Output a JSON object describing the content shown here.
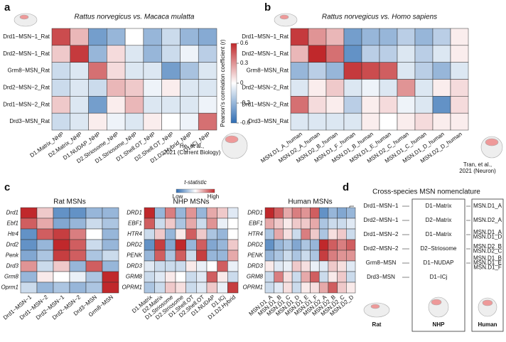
{
  "chart_data": [
    {
      "type": "heatmap",
      "title": "Rattus norvegicus vs. Macaca mulatta",
      "rows": [
        "Drd1−MSN−1_Rat",
        "Drd2−MSN−1_Rat",
        "Grm8−MSN_Rat",
        "Drd2−MSN−2_Rat",
        "Drd1−MSN−2_Rat",
        "Drd3−MSN_Rat"
      ],
      "categories": [
        "D1.Matrix_NHP",
        "D2.Matrix_NHP",
        "D1.NUDAP_NHP",
        "D2.Striosome_NHP",
        "D1.Striosome_NHP",
        "D1.Shell.OT_NHP",
        "D2.Shell.OT_NHP",
        "D1.D2.Hybrid_NHP",
        "D1.ICj_NHP"
      ],
      "values": [
        [
          0.5,
          0.2,
          -0.4,
          -0.3,
          0,
          -0.3,
          -0.15,
          -0.3,
          -0.35
        ],
        [
          0.15,
          0.55,
          -0.3,
          0.1,
          -0.1,
          -0.3,
          -0.15,
          -0.05,
          -0.2
        ],
        [
          -0.15,
          -0.1,
          0.4,
          0.1,
          -0.1,
          -0.1,
          -0.4,
          -0.25,
          -0.1
        ],
        [
          -0.15,
          -0.1,
          -0.15,
          0.2,
          0.15,
          -0.05,
          0.05,
          -0.1,
          -0.1
        ],
        [
          0.15,
          -0.1,
          -0.4,
          0.05,
          0.2,
          -0.1,
          -0.1,
          -0.1,
          -0.05
        ],
        [
          -0.15,
          -0.1,
          0.05,
          -0.05,
          -0.1,
          0.05,
          0,
          -0.05,
          0.4
        ]
      ],
      "colors": [
        "#2f6db3",
        "#ffffff",
        "#c0282b"
      ],
      "colorbar": {
        "label": "Pearson's correlation coefficient (r)",
        "lim": [
          -0.6,
          0.6
        ],
        "ticks": [
          0.6,
          0.3,
          0,
          -0.3,
          -0.6
        ]
      },
      "citation": [
        "He, et al.,",
        "2021 (Current Biology)"
      ]
    },
    {
      "type": "heatmap",
      "title": "Rattus norvegicus vs. Homo sapiens",
      "rows": [
        "Drd1−MSN−1_Rat",
        "Drd2−MSN−1_Rat",
        "Grm8−MSN_Rat",
        "Drd2−MSN−2_Rat",
        "Drd1−MSN−2_Rat",
        "Drd3−MSN_Rat"
      ],
      "categories": [
        "MSN.D1_A_human",
        "MSN.D2_A_human",
        "MSN.D2_B_human",
        "MSN.D1_F_human",
        "MSN.D1_B_human",
        "MSN.D1_E_human",
        "MSN.D2_C_human",
        "MSN.D1_C_human",
        "MSN.D1_D_human",
        "MSN.D2_D_human"
      ],
      "values": [
        [
          0.55,
          0.3,
          0.2,
          -0.4,
          -0.3,
          -0.3,
          -0.2,
          -0.3,
          -0.2,
          0.05
        ],
        [
          0.2,
          0.6,
          0.4,
          -0.45,
          -0.2,
          -0.2,
          -0.1,
          -0.2,
          -0.1,
          0.05
        ],
        [
          -0.3,
          -0.2,
          -0.3,
          0.55,
          0.5,
          0.45,
          -0.1,
          -0.2,
          -0.3,
          -0.1
        ],
        [
          -0.1,
          0.05,
          0.15,
          -0.1,
          -0.05,
          -0.1,
          0.3,
          -0.1,
          0.05,
          0.1
        ],
        [
          0.4,
          0.1,
          0.05,
          -0.2,
          0.05,
          0.1,
          -0.05,
          -0.1,
          -0.45,
          0.1
        ],
        [
          -0.1,
          -0.1,
          -0.1,
          -0.1,
          0.05,
          0,
          0.05,
          0.1,
          0.05,
          0.05
        ]
      ],
      "colors": [
        "#2f6db3",
        "#ffffff",
        "#c0282b"
      ],
      "colorbar": {
        "lim": [
          -0.6,
          0.6
        ]
      },
      "citation": [
        "Tran, et al.,",
        "2021 (Neuron)"
      ]
    },
    {
      "type": "heatmap",
      "title": "Rat MSNs",
      "rows": [
        "Drd1",
        "Ebf1",
        "Htr4",
        "Drd2",
        "Penk",
        "Drd3",
        "Grm8",
        "Oprm1"
      ],
      "categories": [
        "Drd1−MSN−1",
        "Drd1−MSN−2",
        "Drd2−MSN−1",
        "Drd2−MSN−2",
        "Drd3−MSN",
        "Grm8−MSN"
      ],
      "values": [
        [
          2,
          0.5,
          -1.5,
          -1.5,
          -1,
          -1
        ],
        [
          1.5,
          0.8,
          -1.2,
          -1,
          -0.5,
          -0.8
        ],
        [
          -1.5,
          1.5,
          1.8,
          1.2,
          0,
          -1
        ],
        [
          -1.5,
          -1,
          2,
          1.5,
          -0.5,
          -1
        ],
        [
          -1.2,
          -0.8,
          1.8,
          1.5,
          -0.8,
          -0.5
        ],
        [
          1,
          -0.5,
          0.5,
          -1,
          1.5,
          -1
        ],
        [
          -1,
          0.2,
          0,
          -0.2,
          -0.8,
          2
        ],
        [
          -0.5,
          -1,
          -0.8,
          -1,
          -0.8,
          2
        ]
      ],
      "colors": [
        "#2f6db3",
        "#ffffff",
        "#c0282b"
      ],
      "colorbar": {
        "title": "t-statistic",
        "low_label": "Low",
        "high_label": "High"
      }
    },
    {
      "type": "heatmap",
      "title": "NHP MSNs",
      "rows": [
        "DRD1",
        "EBF1",
        "HTR4",
        "DRD2",
        "PENK",
        "DRD3",
        "GRM8",
        "OPRM1"
      ],
      "categories": [
        "D1.Matrix",
        "D2.Matrix",
        "D1.Striosome",
        "D2.Striosome",
        "D1.Shell.OT",
        "D2.Shell.OT",
        "D1.NUDAP",
        "D1.ICj",
        "D1.D2.Hybrid"
      ],
      "values": [
        [
          2,
          -1,
          1.2,
          -1,
          1,
          -1,
          0.8,
          0.5,
          -0.3
        ],
        [
          1.5,
          -0.5,
          0.5,
          -0.8,
          0.8,
          -0.5,
          1,
          -0.2,
          0
        ],
        [
          -0.5,
          0.5,
          -1,
          0.2,
          1.5,
          0.5,
          -0.8,
          -1,
          0
        ],
        [
          -1.5,
          1.8,
          -1.2,
          2,
          -1,
          1.5,
          -1.2,
          -1,
          0.5
        ],
        [
          -1,
          1.5,
          -0.8,
          1.5,
          -0.5,
          1.8,
          -1,
          -1,
          0.8
        ],
        [
          -0.3,
          -0.5,
          -0.5,
          -0.5,
          0.2,
          -0.2,
          0,
          1.5,
          -0.2
        ],
        [
          -0.5,
          -0.3,
          0.2,
          0,
          -0.5,
          -0.3,
          1.5,
          0.2,
          -0.5
        ],
        [
          -0.8,
          -0.5,
          0.5,
          0.3,
          -0.5,
          -0.3,
          0.5,
          -0.2,
          1.8
        ]
      ],
      "colors": [
        "#2f6db3",
        "#ffffff",
        "#c0282b"
      ]
    },
    {
      "type": "heatmap",
      "title": "Human MSNs",
      "rows": [
        "DRD1",
        "EBF1",
        "HTR4",
        "DRD2",
        "PENK",
        "DRD3",
        "GRM8",
        "OPRM1"
      ],
      "categories": [
        "MSN.D1_A",
        "MSN.D1_B",
        "MSN.D1_C",
        "MSN.D1_D",
        "MSN.D1_E",
        "MSN.D1_F",
        "MSN.D2_A",
        "MSN.D2_B",
        "MSN.D2_C",
        "MSN.D2_D"
      ],
      "values": [
        [
          2,
          1.5,
          0.8,
          1.2,
          1,
          1.5,
          -1.5,
          -1,
          -1.2,
          -1
        ],
        [
          0.8,
          0.5,
          0.2,
          0.5,
          0.5,
          0.8,
          -0.8,
          -0.5,
          -0.5,
          -0.3
        ],
        [
          -0.8,
          0.8,
          0.3,
          -0.5,
          1.2,
          0.5,
          -0.8,
          0.3,
          0.5,
          -0.5
        ],
        [
          -1.5,
          -1,
          -0.8,
          -1.2,
          -0.8,
          -1,
          2,
          1.5,
          1.2,
          1.5
        ],
        [
          -1,
          -0.8,
          -0.5,
          -0.8,
          -0.5,
          -0.8,
          1.8,
          1.2,
          1,
          1
        ],
        [
          0.2,
          -0.3,
          -0.2,
          0.5,
          0.3,
          -0.2,
          -0.3,
          0.5,
          0.3,
          -0.3
        ],
        [
          -0.5,
          1.2,
          0.3,
          -0.5,
          0.8,
          1.5,
          -0.5,
          0.2,
          0.5,
          -0.5
        ],
        [
          -0.5,
          -0.3,
          0.3,
          -0.5,
          0.2,
          0.3,
          0.8,
          1.5,
          0.5,
          0.2
        ]
      ],
      "colors": [
        "#2f6db3",
        "#ffffff",
        "#c0282b"
      ]
    }
  ],
  "panel_labels": [
    "a",
    "b",
    "c",
    "d"
  ],
  "nomenclature": {
    "title": "Cross-species MSN nomenclature",
    "rows": [
      {
        "rat": "Drd1−MSN−1",
        "nhp": "D1−Matrix",
        "human": [
          "MSN.D1_A"
        ]
      },
      {
        "rat": "Drd2−MSN−1",
        "nhp": "D2−Matrix",
        "human": [
          "MSN.D2_A"
        ]
      },
      {
        "rat": "Drd1−MSN−2",
        "nhp": "D1−Matrix",
        "human": [
          "MSN.D1_A",
          "MSN.D1_D"
        ]
      },
      {
        "rat": "Drd2−MSN−2",
        "nhp": "D2−Striosome",
        "human": [
          "MSN.D2_B",
          "MSN.D2_C"
        ]
      },
      {
        "rat": "Grm8−MSN",
        "nhp": "D1−NUDAP",
        "human": [
          "MSN.D1_B",
          "MSN.D1_E",
          "MSN.D1_F"
        ]
      },
      {
        "rat": "Drd3−MSN",
        "nhp": "D1−ICj",
        "human": []
      }
    ],
    "footers": [
      "Rat",
      "NHP",
      "Human"
    ]
  }
}
